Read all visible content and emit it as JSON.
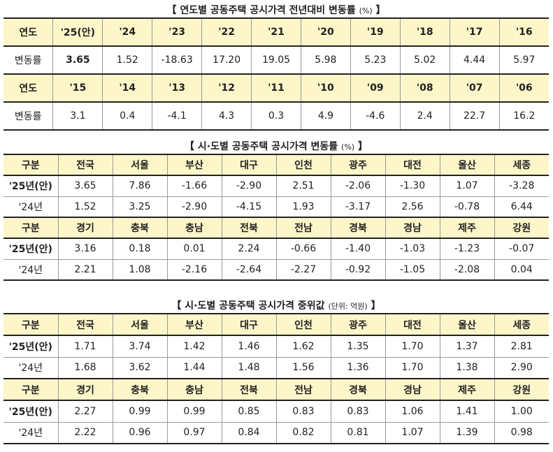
{
  "tables": [
    {
      "title": "【 연도별 공동주택 공시가격 전년대비 변동률",
      "unit": "(%)",
      "end": "】",
      "rows": [
        [
          "연도",
          "'25(안)",
          "'24",
          "'23",
          "'22",
          "'21",
          "'20",
          "'19",
          "'18",
          "'17",
          "'16"
        ],
        [
          "변동률",
          "3.65",
          "1.52",
          "-18.63",
          "17.20",
          "19.05",
          "5.98",
          "5.23",
          "5.02",
          "4.44",
          "5.97"
        ],
        [
          "연도",
          "'15",
          "'14",
          "'13",
          "'12",
          "'11",
          "'10",
          "'09",
          "'08",
          "'07",
          "'06"
        ],
        [
          "변동률",
          "3.1",
          "0.4",
          "-4.1",
          "4.3",
          "0.3",
          "4.9",
          "-4.6",
          "2.4",
          "22.7",
          "16.2"
        ]
      ]
    },
    {
      "title": "【 시·도별 공동주택 공시가격 변동률",
      "unit": "(%)",
      "end": "】",
      "rows": [
        [
          "구분",
          "전국",
          "서울",
          "부산",
          "대구",
          "인천",
          "광주",
          "대전",
          "울산",
          "세종"
        ],
        [
          "'25년(안)",
          "3.65",
          "7.86",
          "-1.66",
          "-2.90",
          "2.51",
          "-2.06",
          "-1.30",
          "1.07",
          "-3.28"
        ],
        [
          "'24년",
          "1.52",
          "3.25",
          "-2.90",
          "-4.15",
          "1.93",
          "-3.17",
          "2.56",
          "-0.78",
          "6.44"
        ],
        [
          "구분",
          "경기",
          "충북",
          "충남",
          "전북",
          "전남",
          "경북",
          "경남",
          "제주",
          "강원"
        ],
        [
          "'25년(안)",
          "3.16",
          "0.18",
          "0.01",
          "2.24",
          "-0.66",
          "-1.40",
          "-1.03",
          "-1.23",
          "-0.07"
        ],
        [
          "'24년",
          "2.21",
          "1.08",
          "-2.16",
          "-2.64",
          "-2.27",
          "-0.92",
          "-1.05",
          "-2.08",
          "0.04"
        ]
      ]
    },
    {
      "title": "【 시·도별 공동주택 공시가격 중위값",
      "unit": "(단위: 억원)",
      "end": "】",
      "rows": [
        [
          "구분",
          "전국",
          "서울",
          "부산",
          "대구",
          "인천",
          "광주",
          "대전",
          "울산",
          "세종"
        ],
        [
          "'25년(안)",
          "1.71",
          "3.74",
          "1.42",
          "1.46",
          "1.62",
          "1.35",
          "1.70",
          "1.37",
          "2.81"
        ],
        [
          "'24년",
          "1.68",
          "3.62",
          "1.44",
          "1.48",
          "1.56",
          "1.36",
          "1.70",
          "1.38",
          "2.90"
        ],
        [
          "구분",
          "경기",
          "충북",
          "충남",
          "전북",
          "전남",
          "경북",
          "경남",
          "제주",
          "강원"
        ],
        [
          "'25년(안)",
          "2.27",
          "0.99",
          "0.99",
          "0.85",
          "0.83",
          "0.83",
          "1.06",
          "1.41",
          "1.00"
        ],
        [
          "'24년",
          "2.22",
          "0.96",
          "0.97",
          "0.84",
          "0.82",
          "0.81",
          "1.07",
          "1.39",
          "0.98"
        ]
      ]
    }
  ]
}
